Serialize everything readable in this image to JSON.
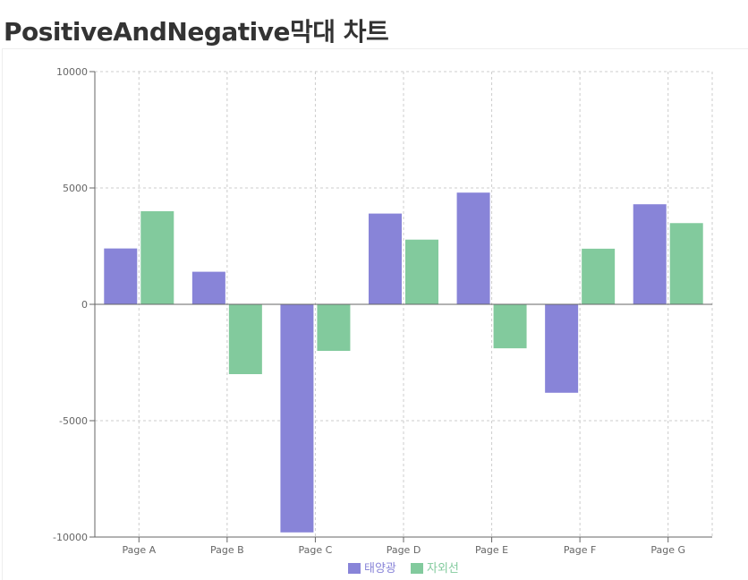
{
  "page": {
    "title": "PositiveAndNegative막대 차트"
  },
  "colors": {
    "series_1": "#8884d8",
    "series_2": "#82ca9d",
    "grid": "#cccccc",
    "axis": "#666666",
    "zero_line": "#666666"
  },
  "chart_data": {
    "type": "bar",
    "title": "",
    "xlabel": "",
    "ylabel": "",
    "categories": [
      "Page A",
      "Page B",
      "Page C",
      "Page D",
      "Page E",
      "Page F",
      "Page G"
    ],
    "series": [
      {
        "name": "태양광",
        "values": [
          2400,
          1400,
          -9800,
          3900,
          4800,
          -3800,
          4300
        ]
      },
      {
        "name": "자외선",
        "values": [
          4000,
          -3000,
          -2000,
          2780,
          -1890,
          2390,
          3490
        ]
      }
    ],
    "ylim": [
      -10000,
      10000
    ],
    "yticks": [
      -10000,
      -5000,
      0,
      5000,
      10000
    ],
    "grid": true,
    "grid_style": "dashed",
    "legend_position": "bottom-center"
  }
}
